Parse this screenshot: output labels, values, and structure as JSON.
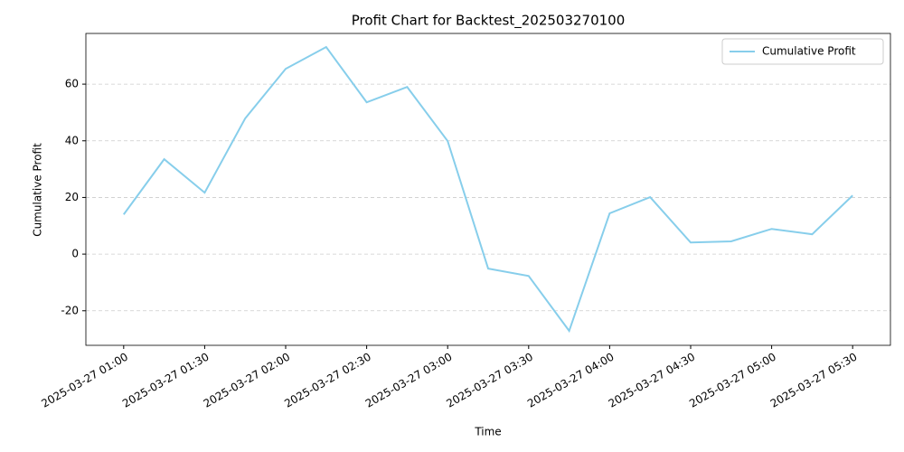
{
  "chart_data": {
    "type": "line",
    "title": "Profit Chart for Backtest_202503270100",
    "xlabel": "Time",
    "ylabel": "Cumulative Profit",
    "x": [
      "2025-03-27 01:00",
      "2025-03-27 01:15",
      "2025-03-27 01:30",
      "2025-03-27 01:45",
      "2025-03-27 02:00",
      "2025-03-27 02:15",
      "2025-03-27 02:30",
      "2025-03-27 02:45",
      "2025-03-27 03:00",
      "2025-03-27 03:15",
      "2025-03-27 03:30",
      "2025-03-27 03:45",
      "2025-03-27 04:00",
      "2025-03-27 04:15",
      "2025-03-27 04:30",
      "2025-03-27 04:45",
      "2025-03-27 05:00",
      "2025-03-27 05:15",
      "2025-03-27 05:30"
    ],
    "series": [
      {
        "name": "Cumulative Profit",
        "color": "#87ceeb",
        "values": [
          14.0,
          33.5,
          21.7,
          47.9,
          65.4,
          73.1,
          53.6,
          59.0,
          39.9,
          -5.1,
          -7.7,
          -27.1,
          14.4,
          20.1,
          4.1,
          4.5,
          8.9,
          7.0,
          20.7
        ]
      }
    ],
    "xlim": [
      "2025-03-27 00:46",
      "2025-03-27 05:44"
    ],
    "xticks": [
      "2025-03-27 01:00",
      "2025-03-27 01:30",
      "2025-03-27 02:00",
      "2025-03-27 02:30",
      "2025-03-27 03:00",
      "2025-03-27 03:30",
      "2025-03-27 04:00",
      "2025-03-27 04:30",
      "2025-03-27 05:00",
      "2025-03-27 05:30"
    ],
    "ylim": [
      -32.2,
      77.9
    ],
    "yticks": [
      -20,
      0,
      20,
      40,
      60
    ],
    "grid": "y",
    "legend": "upper right"
  }
}
